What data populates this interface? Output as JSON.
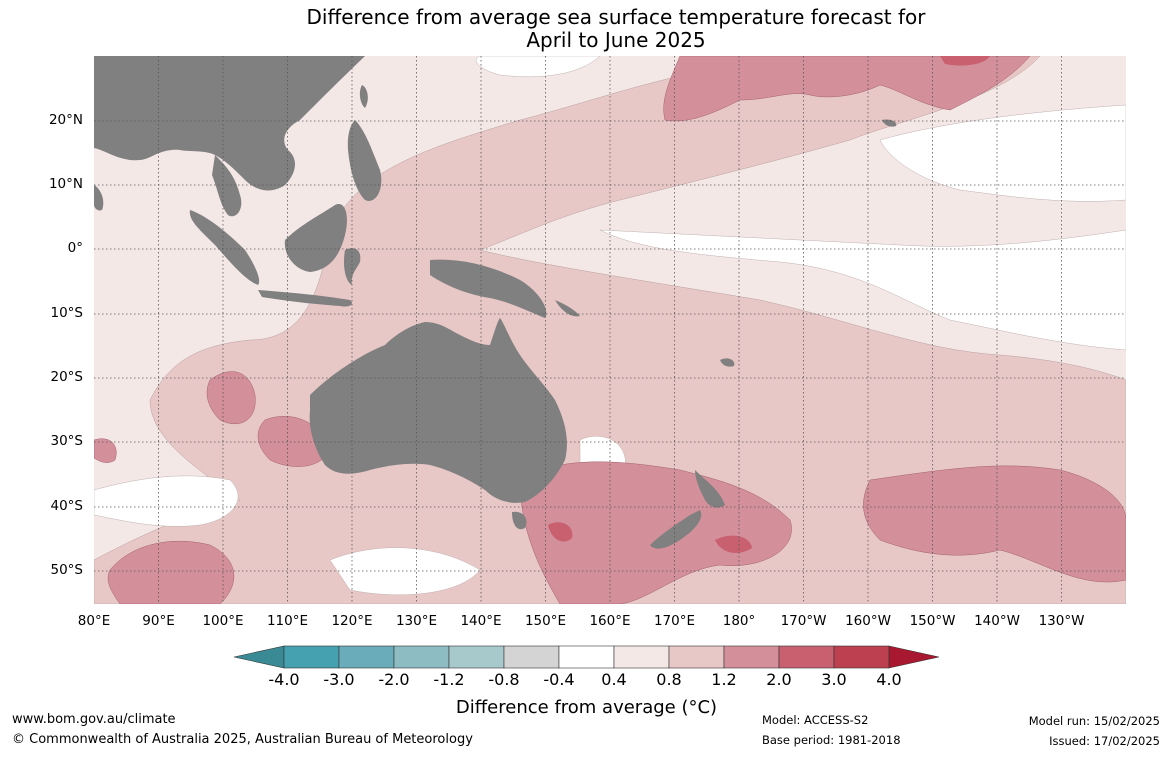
{
  "title_line1": "Difference from average sea surface temperature forecast for",
  "title_line2": "April to June 2025",
  "latitude_labels": [
    "20°N",
    "10°N",
    "0°",
    "10°S",
    "20°S",
    "30°S",
    "40°S",
    "50°S"
  ],
  "longitude_labels": [
    "80°E",
    "90°E",
    "100°E",
    "110°E",
    "120°E",
    "130°E",
    "140°E",
    "150°E",
    "160°E",
    "170°E",
    "180°",
    "170°W",
    "160°W",
    "150°W",
    "140°W",
    "130°W"
  ],
  "colorbar": {
    "label": "Difference from average (°C)",
    "ticks": [
      "-4.0",
      "-3.0",
      "-2.0",
      "-1.2",
      "-0.8",
      "-0.4",
      "0.4",
      "0.8",
      "1.2",
      "2.0",
      "3.0",
      "4.0"
    ],
    "colors": [
      "#45a0b0",
      "#6bacba",
      "#8dbcc3",
      "#a8c9cc",
      "#d4d4d4",
      "#ffffff",
      "#f4e8e7",
      "#e8c8c6",
      "#d4909a",
      "#c86070",
      "#bc4050"
    ],
    "under_color": "#3a8a96",
    "over_color": "#a81830"
  },
  "colors": {
    "land": "#808080",
    "ocean_base": "#f4e8e7"
  },
  "footer": {
    "website": "www.bom.gov.au/climate",
    "copyright": "© Commonwealth of Australia 2025, Australian Bureau of Meteorology",
    "model": "Model: ACCESS-S2",
    "base_period": "Base period: 1981-2018",
    "model_run": "Model run: 15/02/2025",
    "issued": "Issued: 17/02/2025"
  }
}
